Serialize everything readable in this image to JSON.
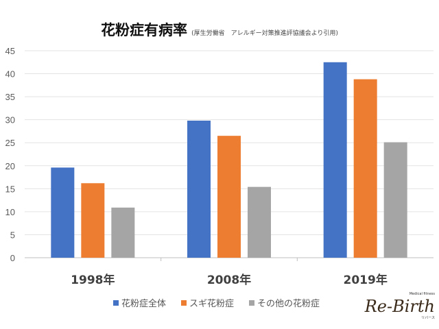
{
  "chart_data": {
    "type": "bar",
    "title": "花粉症有病率",
    "subtitle": "(厚生労働省　アレルギー対策推進評協議会より引用)",
    "categories": [
      "1998年",
      "2008年",
      "2019年"
    ],
    "series": [
      {
        "name": "花粉症全体",
        "color": "#4472c4",
        "values": [
          19.6,
          29.8,
          42.5
        ]
      },
      {
        "name": "スギ花粉症",
        "color": "#ed7d31",
        "values": [
          16.2,
          26.5,
          38.8
        ]
      },
      {
        "name": "その他の花粉症",
        "color": "#a5a5a5",
        "values": [
          10.9,
          15.4,
          25.1
        ]
      }
    ],
    "xlabel": "",
    "ylabel": "",
    "ylim": [
      0,
      45
    ],
    "yticks": [
      0,
      5,
      10,
      15,
      20,
      25,
      30,
      35,
      40,
      45
    ],
    "grid": true,
    "legend": "bottom"
  },
  "logo": {
    "text": "Re-Birth",
    "tagline": "Medical fitness",
    "kana": "リバース"
  }
}
